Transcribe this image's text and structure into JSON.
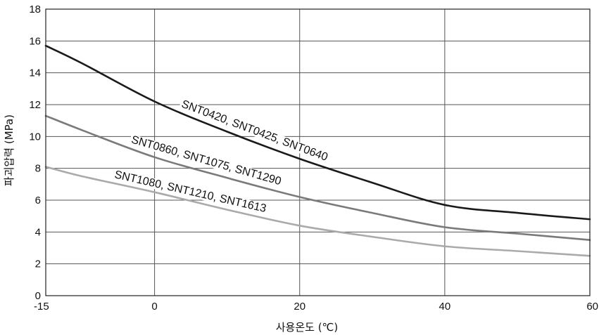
{
  "chart_data": {
    "type": "line",
    "xlabel": "사용온도 (℃)",
    "ylabel": "파괴압력 (MPa)",
    "xlim": [
      -15,
      60
    ],
    "ylim": [
      0,
      18
    ],
    "xticks": [
      "-15",
      "0",
      "20",
      "40",
      "60"
    ],
    "yticks": [
      "0",
      "2",
      "4",
      "6",
      "8",
      "10",
      "12",
      "14",
      "16",
      "18"
    ],
    "grid": true,
    "series": [
      {
        "name": "SNT0420, SNT0425, SNT0640",
        "color": "#1a1a1a",
        "points": [
          [
            -15,
            15.7
          ],
          [
            -10,
            14.6
          ],
          [
            0,
            12.2
          ],
          [
            10,
            10.3
          ],
          [
            20,
            8.6
          ],
          [
            30,
            7.1
          ],
          [
            40,
            5.7
          ],
          [
            50,
            5.2
          ],
          [
            60,
            4.8
          ]
        ]
      },
      {
        "name": "SNT0860, SNT1075, SNT1290",
        "color": "#7a7a7a",
        "points": [
          [
            -15,
            11.3
          ],
          [
            -10,
            10.4
          ],
          [
            0,
            8.7
          ],
          [
            10,
            7.4
          ],
          [
            20,
            6.2
          ],
          [
            30,
            5.2
          ],
          [
            40,
            4.3
          ],
          [
            50,
            3.9
          ],
          [
            60,
            3.5
          ]
        ]
      },
      {
        "name": "SNT1080, SNT1210, SNT1613",
        "color": "#aaaaaa",
        "points": [
          [
            -15,
            8.1
          ],
          [
            -10,
            7.5
          ],
          [
            0,
            6.5
          ],
          [
            10,
            5.4
          ],
          [
            20,
            4.4
          ],
          [
            30,
            3.7
          ],
          [
            40,
            3.1
          ],
          [
            50,
            2.8
          ],
          [
            60,
            2.5
          ]
        ]
      }
    ]
  }
}
